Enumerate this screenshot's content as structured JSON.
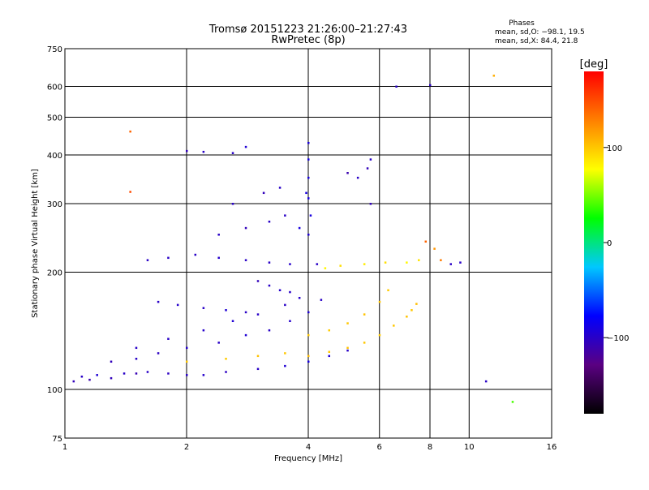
{
  "chart_data": {
    "type": "scatter",
    "title": "Tromsø 20151223 21:26:00–21:27:43",
    "subtitle": "RwPretec (8p)",
    "xlabel": "Frequency [MHz]",
    "ylabel": "Stationary phase Virtual Height [km]",
    "x_scale": "log",
    "y_scale": "log",
    "xlim": [
      1,
      16
    ],
    "ylim": [
      75,
      750
    ],
    "x_ticks": [
      1,
      2,
      4,
      6,
      8,
      10,
      16
    ],
    "x_tick_labels": [
      "1",
      "2",
      "4",
      "6",
      "8",
      "10",
      "16"
    ],
    "y_ticks": [
      75,
      100,
      200,
      300,
      400,
      500,
      600,
      750
    ],
    "y_tick_labels": [
      "75",
      "100",
      "200",
      "300",
      "400",
      "500",
      "600",
      "750"
    ],
    "grid": true,
    "phases_box": {
      "heading": "Phases",
      "line_o": "mean, sd,O: −98.1, 19.5",
      "line_x": "mean, sd,X:  84.4, 21.8"
    },
    "colorbar": {
      "label": "[deg]",
      "range": [
        -180,
        180
      ],
      "ticks": [
        100,
        0,
        -100
      ],
      "tick_labels": [
        "100",
        "0",
        "−100"
      ],
      "colors": [
        "#000000",
        "#5a0082",
        "#0000ff",
        "#00c8ff",
        "#00ff00",
        "#ffff00",
        "#ff8000",
        "#ff0000"
      ]
    },
    "series": [
      {
        "points": [
          [
            1.05,
            105,
            -105
          ],
          [
            1.1,
            108,
            -100
          ],
          [
            1.15,
            106,
            -110
          ],
          [
            1.2,
            109,
            -95
          ],
          [
            1.3,
            107,
            -105
          ],
          [
            1.4,
            110,
            -100
          ],
          [
            1.5,
            110,
            -108
          ],
          [
            1.6,
            111,
            -100
          ],
          [
            1.8,
            110,
            -102
          ],
          [
            2.0,
            109,
            -100
          ],
          [
            2.2,
            109,
            -98
          ],
          [
            2.5,
            111,
            -102
          ],
          [
            3.0,
            113,
            -100
          ],
          [
            3.5,
            115,
            -95
          ],
          [
            4.0,
            118,
            -90
          ],
          [
            4.5,
            122,
            -95
          ],
          [
            5.0,
            126,
            -100
          ],
          [
            1.3,
            118,
            -105
          ],
          [
            1.5,
            120,
            -100
          ],
          [
            1.7,
            124,
            -102
          ],
          [
            2.0,
            128,
            -98
          ],
          [
            2.4,
            132,
            -100
          ],
          [
            2.8,
            138,
            -95
          ],
          [
            3.2,
            142,
            -100
          ],
          [
            3.6,
            150,
            -98
          ],
          [
            4.0,
            158,
            -95
          ],
          [
            4.3,
            170,
            -100
          ],
          [
            1.5,
            128,
            -100
          ],
          [
            1.8,
            135,
            -100
          ],
          [
            2.2,
            142,
            -98
          ],
          [
            2.6,
            150,
            -95
          ],
          [
            3.0,
            156,
            -100
          ],
          [
            3.5,
            165,
            -100
          ],
          [
            3.8,
            172,
            -98
          ],
          [
            2.0,
            118,
            100
          ],
          [
            2.5,
            120,
            98
          ],
          [
            3.0,
            122,
            102
          ],
          [
            3.5,
            124,
            100
          ],
          [
            4.0,
            122,
            104
          ],
          [
            4.5,
            125,
            100
          ],
          [
            5.0,
            128,
            102
          ],
          [
            5.5,
            132,
            100
          ],
          [
            6.0,
            138,
            98
          ],
          [
            6.5,
            146,
            100
          ],
          [
            7.0,
            154,
            102
          ],
          [
            7.2,
            160,
            100
          ],
          [
            7.4,
            166,
            104
          ],
          [
            4.0,
            138,
            100
          ],
          [
            4.5,
            142,
            98
          ],
          [
            5.0,
            148,
            100
          ],
          [
            5.5,
            156,
            102
          ],
          [
            6.0,
            168,
            100
          ],
          [
            6.3,
            180,
            98
          ],
          [
            1.7,
            168,
            -100
          ],
          [
            1.9,
            165,
            -98
          ],
          [
            2.2,
            162,
            -100
          ],
          [
            2.5,
            160,
            -95
          ],
          [
            2.8,
            158,
            -100
          ],
          [
            3.0,
            190,
            -105
          ],
          [
            3.2,
            185,
            -100
          ],
          [
            3.4,
            180,
            -98
          ],
          [
            3.6,
            178,
            -100
          ],
          [
            4.0,
            310,
            -90
          ],
          [
            4.0,
            350,
            -90
          ],
          [
            4.0,
            390,
            -88
          ],
          [
            4.0,
            430,
            -92
          ],
          [
            4.05,
            280,
            -90
          ],
          [
            3.95,
            320,
            -90
          ],
          [
            4.0,
            250,
            -95
          ],
          [
            3.8,
            260,
            -90
          ],
          [
            3.5,
            280,
            -100
          ],
          [
            3.2,
            270,
            -100
          ],
          [
            2.8,
            260,
            -105
          ],
          [
            2.4,
            250,
            -100
          ],
          [
            2.1,
            222,
            -100
          ],
          [
            2.4,
            218,
            -98
          ],
          [
            2.8,
            215,
            -100
          ],
          [
            3.2,
            212,
            -100
          ],
          [
            3.6,
            210,
            -98
          ],
          [
            4.2,
            210,
            -100
          ],
          [
            4.4,
            205,
            80
          ],
          [
            4.8,
            208,
            90
          ],
          [
            5.5,
            210,
            85
          ],
          [
            6.2,
            212,
            90
          ],
          [
            7.0,
            212,
            80
          ],
          [
            7.5,
            215,
            88
          ],
          [
            7.8,
            240,
            140
          ],
          [
            8.2,
            230,
            120
          ],
          [
            8.5,
            215,
            130
          ],
          [
            9.0,
            210,
            -100
          ],
          [
            9.5,
            212,
            -100
          ],
          [
            5.0,
            360,
            -110
          ],
          [
            5.3,
            350,
            -100
          ],
          [
            5.6,
            370,
            -105
          ],
          [
            5.7,
            390,
            -100
          ],
          [
            2.0,
            410,
            -105
          ],
          [
            2.2,
            408,
            -100
          ],
          [
            2.6,
            405,
            -100
          ],
          [
            2.8,
            420,
            -95
          ],
          [
            2.6,
            300,
            -100
          ],
          [
            3.1,
            320,
            -105
          ],
          [
            3.4,
            330,
            -100
          ],
          [
            5.7,
            300,
            -105
          ],
          [
            1.6,
            215,
            -100
          ],
          [
            1.8,
            218,
            -100
          ],
          [
            12.8,
            93,
            40
          ],
          [
            11.0,
            105,
            -100
          ],
          [
            6.6,
            600,
            -100
          ],
          [
            8.0,
            605,
            -100
          ],
          [
            1.45,
            460,
            140
          ],
          [
            1.45,
            322,
            150
          ],
          [
            11.5,
            640,
            110
          ]
        ]
      }
    ]
  }
}
